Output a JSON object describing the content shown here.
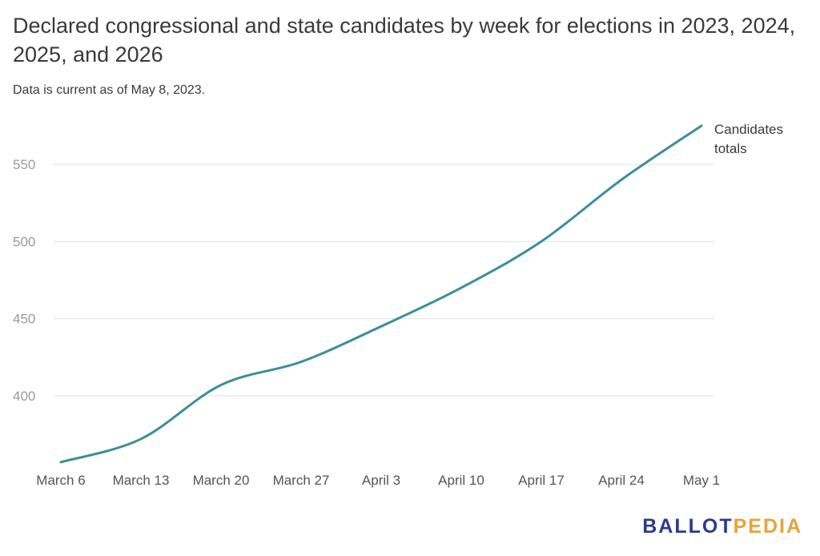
{
  "title": "Declared congressional and state candidates by week for elections in 2023, 2024, 2025, and 2026",
  "subtitle": "Data is current as of May 8, 2023.",
  "logo": {
    "part1": "BALLOT",
    "part2": "PEDIA"
  },
  "colors": {
    "line": "#3a8f9b",
    "grid": "#e2e2e2",
    "tick": "#9a9a9a",
    "text": "#3a3a3a"
  },
  "chart_data": {
    "type": "line",
    "categories": [
      "March 6",
      "March 13",
      "March 20",
      "March 27",
      "April 3",
      "April 10",
      "April 17",
      "April 24",
      "May 1"
    ],
    "series": [
      {
        "name": "Candidates totals",
        "values": [
          357,
          372,
          407,
          422,
          445,
          470,
          500,
          540,
          575
        ]
      }
    ],
    "yticks": [
      400,
      450,
      500,
      550
    ],
    "ylim": [
      350,
      580
    ],
    "grid": true,
    "legend": "line-end label"
  }
}
